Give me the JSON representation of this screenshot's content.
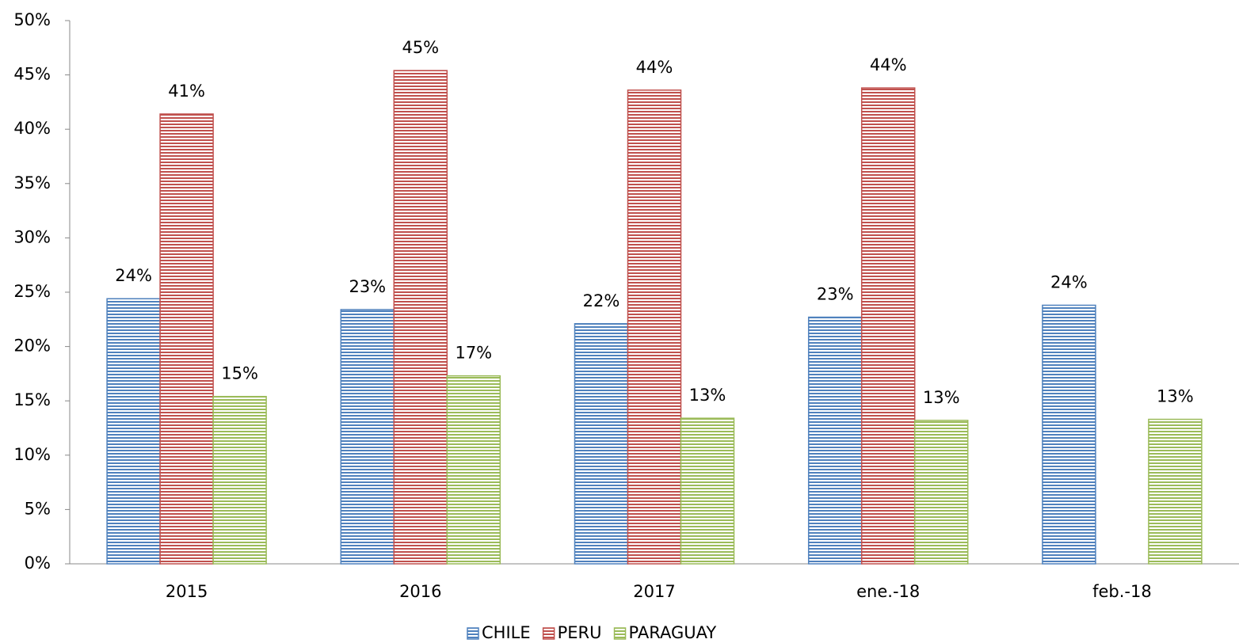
{
  "chart_data": {
    "type": "bar",
    "categories": [
      "2015",
      "2016",
      "2017",
      "ene.-18",
      "feb.-18"
    ],
    "series": [
      {
        "name": "CHILE",
        "color": "#4f81bd",
        "values": [
          24.4,
          23.4,
          22.1,
          22.7,
          23.8
        ],
        "value_labels": [
          "24%",
          "23%",
          "22%",
          "23%",
          "24%"
        ]
      },
      {
        "name": "PERU",
        "color": "#c0504d",
        "values": [
          41.4,
          45.4,
          43.6,
          43.8,
          null
        ],
        "value_labels": [
          "41%",
          "45%",
          "44%",
          "44%",
          null
        ]
      },
      {
        "name": "PARAGUAY",
        "color": "#9bbb59",
        "values": [
          15.4,
          17.3,
          13.4,
          13.2,
          13.3
        ],
        "value_labels": [
          "15%",
          "17%",
          "13%",
          "13%",
          "13%"
        ]
      }
    ],
    "ylim": [
      0,
      50
    ],
    "yticks": [
      {
        "value": 0,
        "label": "0%"
      },
      {
        "value": 5,
        "label": "5%"
      },
      {
        "value": 10,
        "label": "10%"
      },
      {
        "value": 15,
        "label": "15%"
      },
      {
        "value": 20,
        "label": "20%"
      },
      {
        "value": 25,
        "label": "25%"
      },
      {
        "value": 30,
        "label": "30%"
      },
      {
        "value": 35,
        "label": "35%"
      },
      {
        "value": 40,
        "label": "40%"
      },
      {
        "value": 45,
        "label": "45%"
      },
      {
        "value": 50,
        "label": "50%"
      }
    ],
    "grid": false,
    "legend": "bottom"
  }
}
